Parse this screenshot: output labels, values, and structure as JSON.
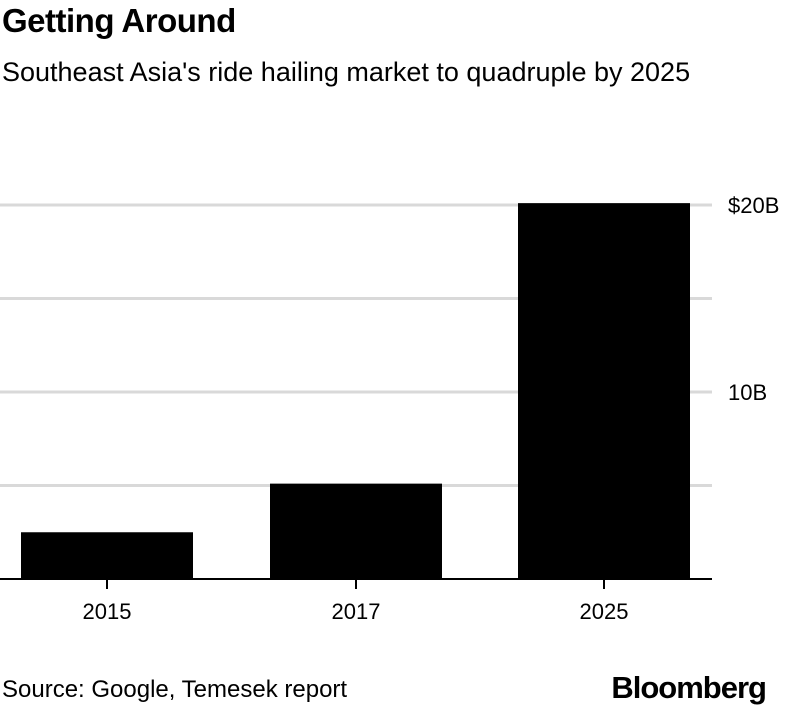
{
  "header": {
    "title": "Getting Around",
    "subtitle": "Southeast Asia's ride hailing market to quadruple by 2025"
  },
  "footer": {
    "source": "Source: Google, Temesek report",
    "brand": "Bloomberg"
  },
  "colors": {
    "bar": "#000000",
    "grid": "#d9d9d9",
    "axis": "#000000"
  },
  "chart_data": {
    "type": "bar",
    "categories": [
      "2015",
      "2017",
      "2025"
    ],
    "values": [
      2.5,
      5.1,
      20.1
    ],
    "unit": "billion USD",
    "ylim": [
      0,
      20
    ],
    "y_gridlines": [
      5,
      10,
      15,
      20
    ],
    "y_ticks": [
      {
        "value": 20,
        "label": "$20B"
      },
      {
        "value": 10,
        "label": "10B"
      }
    ],
    "grid": true,
    "axis_side": "right",
    "legend": "none"
  }
}
